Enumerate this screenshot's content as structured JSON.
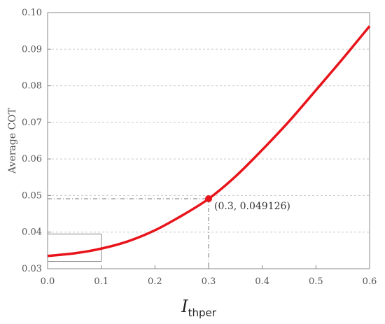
{
  "chart_data": {
    "type": "line",
    "ylabel": "Average COT",
    "xlabel_main": "I",
    "xlabel_sub": "thper",
    "xlim": [
      0,
      0.6
    ],
    "ylim": [
      0.03,
      0.1
    ],
    "x_ticks": [
      0.0,
      0.1,
      0.2,
      0.3,
      0.4,
      0.5,
      0.6
    ],
    "x_tick_labels": [
      "0.0",
      "0.1",
      "0.2",
      "0.3",
      "0.4",
      "0.5",
      "0.6"
    ],
    "y_ticks": [
      0.03,
      0.04,
      0.05,
      0.06,
      0.07,
      0.08,
      0.09,
      0.1
    ],
    "y_tick_labels": [
      "0.03",
      "0.04",
      "0.05",
      "0.06",
      "0.07",
      "0.08",
      "0.09",
      "0.10"
    ],
    "grid": "horizontal dashed",
    "series": [
      {
        "color": "#e8141b",
        "x": [
          0.0,
          0.05,
          0.1,
          0.15,
          0.2,
          0.25,
          0.3,
          0.35,
          0.4,
          0.45,
          0.5,
          0.55,
          0.6
        ],
        "y": [
          0.0335,
          0.0342,
          0.0355,
          0.0375,
          0.0405,
          0.0445,
          0.0491,
          0.0552,
          0.0625,
          0.0703,
          0.0788,
          0.0874,
          0.0963
        ]
      }
    ],
    "highlight_point": {
      "x": 0.3,
      "y": 0.049126,
      "label": "(0.3, 0.049126)",
      "color": "#e8141b"
    },
    "zoom_box": {
      "x_range": [
        0.0,
        0.1
      ],
      "y_range": [
        0.032,
        0.0395
      ]
    }
  }
}
